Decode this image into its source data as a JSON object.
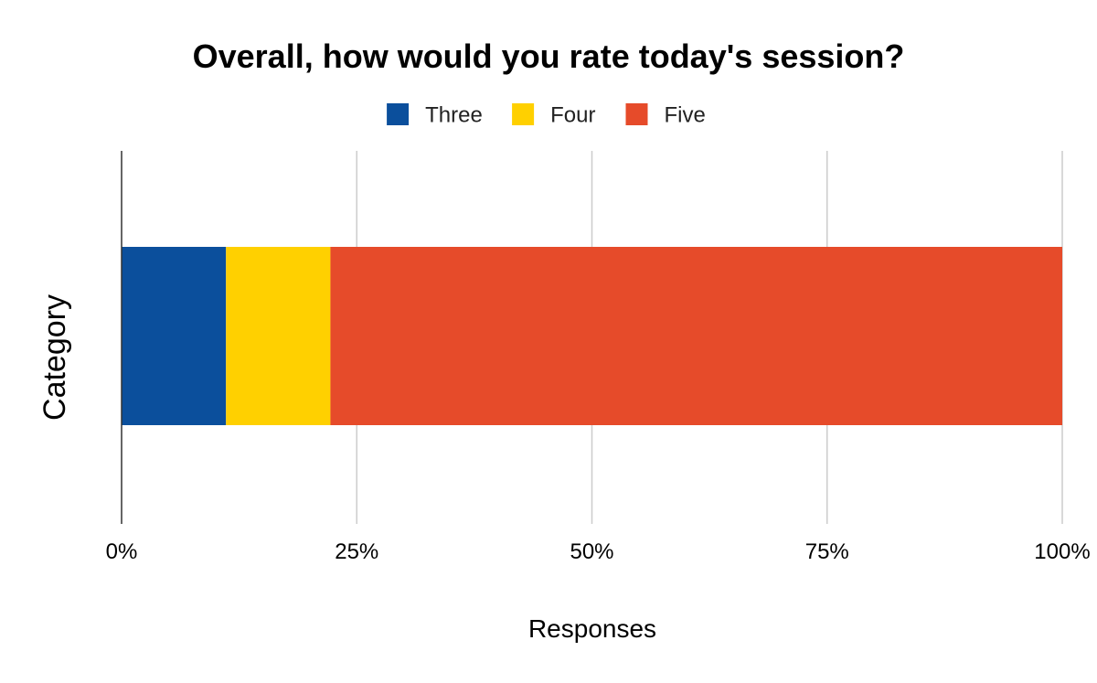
{
  "chart_data": {
    "type": "bar",
    "orientation": "horizontal",
    "stacking": "percent",
    "title": "Overall, how would you rate today's session?",
    "xlabel": "Responses",
    "ylabel": "Category",
    "categories": [
      ""
    ],
    "series": [
      {
        "name": "Three",
        "values": [
          11.1
        ],
        "color": "#0b4f9c"
      },
      {
        "name": "Four",
        "values": [
          11.1
        ],
        "color": "#ffd000"
      },
      {
        "name": "Five",
        "values": [
          77.8
        ],
        "color": "#e64b2a"
      }
    ],
    "xlim": [
      0,
      100
    ],
    "ticks": [
      {
        "value": 0,
        "label": "0%"
      },
      {
        "value": 25,
        "label": "25%"
      },
      {
        "value": 50,
        "label": "50%"
      },
      {
        "value": 75,
        "label": "75%"
      },
      {
        "value": 100,
        "label": "100%"
      }
    ],
    "grid": true,
    "legend_position": "top"
  }
}
